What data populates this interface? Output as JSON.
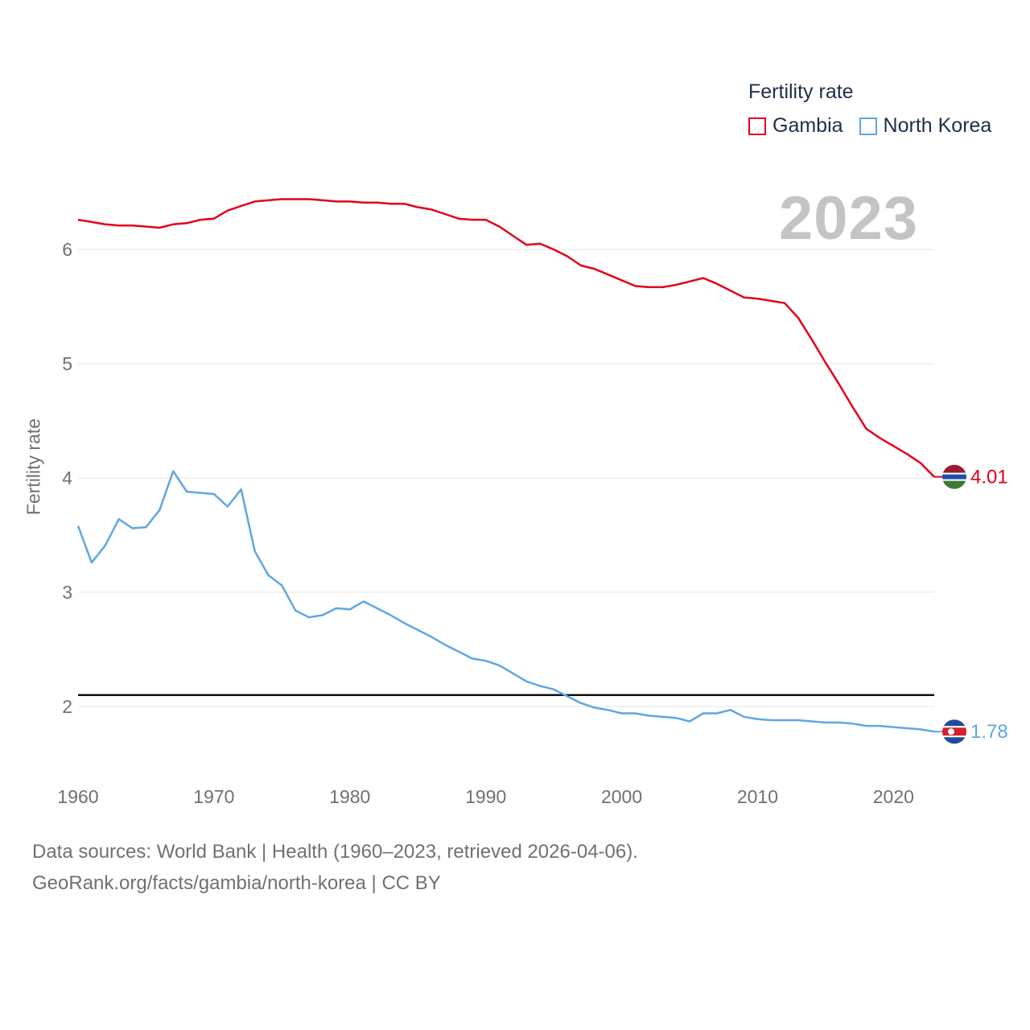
{
  "chart_data": {
    "type": "line",
    "title": "",
    "ylabel": "Fertility rate",
    "xlabel": "",
    "year_label": "2023",
    "legend_title": "Fertility rate",
    "xlim": [
      1960,
      2023
    ],
    "ylim": [
      1.5,
      6.7
    ],
    "x_ticks": [
      1960,
      1970,
      1980,
      1990,
      2000,
      2010,
      2020
    ],
    "y_ticks": [
      2,
      3,
      4,
      5,
      6
    ],
    "reference_line": 2.1,
    "x": [
      1960,
      1961,
      1962,
      1963,
      1964,
      1965,
      1966,
      1967,
      1968,
      1969,
      1970,
      1971,
      1972,
      1973,
      1974,
      1975,
      1976,
      1977,
      1978,
      1979,
      1980,
      1981,
      1982,
      1983,
      1984,
      1985,
      1986,
      1987,
      1988,
      1989,
      1990,
      1991,
      1992,
      1993,
      1994,
      1995,
      1996,
      1997,
      1998,
      1999,
      2000,
      2001,
      2002,
      2003,
      2004,
      2005,
      2006,
      2007,
      2008,
      2009,
      2010,
      2011,
      2012,
      2013,
      2014,
      2015,
      2016,
      2017,
      2018,
      2019,
      2020,
      2021,
      2022,
      2023
    ],
    "series": [
      {
        "name": "Gambia",
        "color": "#e3001b",
        "end_label": "4.01",
        "values": [
          6.26,
          6.24,
          6.22,
          6.21,
          6.21,
          6.2,
          6.19,
          6.22,
          6.23,
          6.26,
          6.27,
          6.34,
          6.38,
          6.42,
          6.43,
          6.44,
          6.44,
          6.44,
          6.43,
          6.42,
          6.42,
          6.41,
          6.41,
          6.4,
          6.4,
          6.37,
          6.35,
          6.31,
          6.27,
          6.26,
          6.26,
          6.2,
          6.12,
          6.04,
          6.05,
          6.0,
          5.94,
          5.86,
          5.83,
          5.78,
          5.73,
          5.68,
          5.67,
          5.67,
          5.69,
          5.72,
          5.75,
          5.7,
          5.64,
          5.58,
          5.57,
          5.55,
          5.53,
          5.4,
          5.21,
          5.01,
          4.82,
          4.62,
          4.43,
          4.35,
          4.28,
          4.21,
          4.13,
          4.01
        ]
      },
      {
        "name": "North Korea",
        "color": "#5fa6e3",
        "end_label": "1.78",
        "values": [
          3.58,
          3.26,
          3.41,
          3.64,
          3.56,
          3.57,
          3.72,
          4.06,
          3.88,
          3.87,
          3.86,
          3.75,
          3.9,
          3.36,
          3.15,
          3.06,
          2.84,
          2.78,
          2.8,
          2.86,
          2.85,
          2.92,
          2.86,
          2.8,
          2.73,
          2.67,
          2.61,
          2.54,
          2.48,
          2.42,
          2.4,
          2.36,
          2.29,
          2.22,
          2.18,
          2.15,
          2.09,
          2.03,
          1.99,
          1.97,
          1.94,
          1.94,
          1.92,
          1.91,
          1.9,
          1.87,
          1.94,
          1.94,
          1.97,
          1.91,
          1.89,
          1.88,
          1.88,
          1.88,
          1.87,
          1.86,
          1.86,
          1.85,
          1.83,
          1.83,
          1.82,
          1.81,
          1.8,
          1.78
        ]
      }
    ]
  },
  "footer": {
    "line1": "Data sources: World Bank | Health (1960–2023, retrieved 2026-04-06).",
    "line2": "GeoRank.org/facts/gambia/north-korea | CC BY"
  }
}
